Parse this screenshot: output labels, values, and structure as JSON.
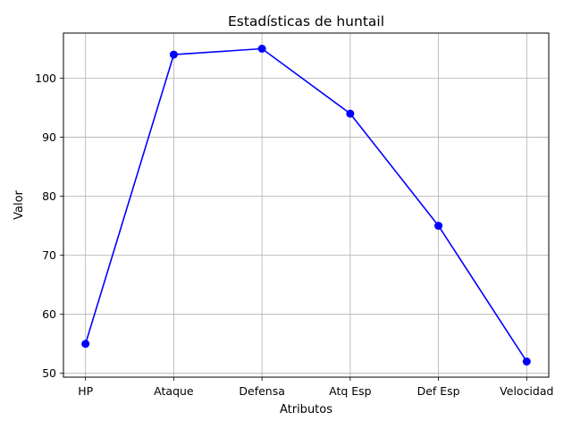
{
  "chart_data": {
    "type": "line",
    "title": "Estadísticas de huntail",
    "xlabel": "Atributos",
    "ylabel": "Valor",
    "categories": [
      "HP",
      "Ataque",
      "Defensa",
      "Atq Esp",
      "Def Esp",
      "Velocidad"
    ],
    "series": [
      {
        "values": [
          55,
          104,
          105,
          94,
          75,
          52
        ],
        "color": "#0000ff",
        "marker": "circle"
      }
    ],
    "yticks": [
      50,
      60,
      70,
      80,
      90,
      100
    ],
    "ylim": [
      49.35,
      107.65
    ],
    "grid": true,
    "legend": "none"
  }
}
